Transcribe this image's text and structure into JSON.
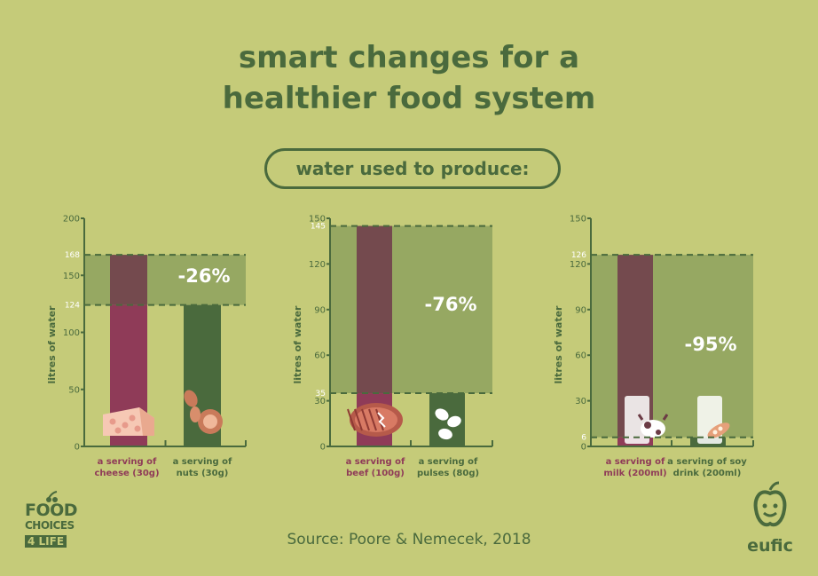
{
  "title": {
    "line1": "smart changes for a",
    "line2": "healthier food system"
  },
  "subtitle": "water used to produce:",
  "source": "Source: Poore & Nemecek, 2018",
  "logos": {
    "left_line1": "FOOD",
    "left_line2": "CHOICES",
    "left_line3": "4 LIFE",
    "right": "eufic"
  },
  "colors": {
    "background": "#c5cb79",
    "band": "#96a862",
    "dark_green": "#4a6a3d",
    "maroon": "#8f3b58",
    "overlap": "#744a4e",
    "pct_text": "#ffffff"
  },
  "chart_data": [
    {
      "type": "bar",
      "ylabel": "litres of water",
      "ylim": [
        0,
        200
      ],
      "yticks": [
        0,
        50,
        100,
        150,
        200
      ],
      "marked_values": [
        124,
        168
      ],
      "categories": [
        "a serving of\ncheese (30g)",
        "a serving of\nnuts (30g)"
      ],
      "values": [
        168,
        124
      ],
      "reduction_label": "-26%",
      "icons": [
        "cheese-icon",
        "nuts-icon"
      ]
    },
    {
      "type": "bar",
      "ylabel": "litres of water",
      "ylim": [
        0,
        150
      ],
      "yticks": [
        0,
        30,
        60,
        90,
        120,
        150
      ],
      "marked_values": [
        35,
        145
      ],
      "categories": [
        "a serving of\nbeef (100g)",
        "a serving of\npulses (80g)"
      ],
      "values": [
        145,
        35
      ],
      "reduction_label": "-76%",
      "icons": [
        "steak-icon",
        "beans-icon"
      ]
    },
    {
      "type": "bar",
      "ylabel": "litres of water",
      "ylim": [
        0,
        150
      ],
      "yticks": [
        0,
        30,
        60,
        90,
        120,
        150
      ],
      "marked_values": [
        6,
        126
      ],
      "categories": [
        "a serving of\nmilk (200ml)",
        "a serving of soy\ndrink (200ml)"
      ],
      "values": [
        126,
        6
      ],
      "reduction_label": "-95%",
      "icons": [
        "milk-glass-icon",
        "soy-drink-icon"
      ]
    }
  ]
}
